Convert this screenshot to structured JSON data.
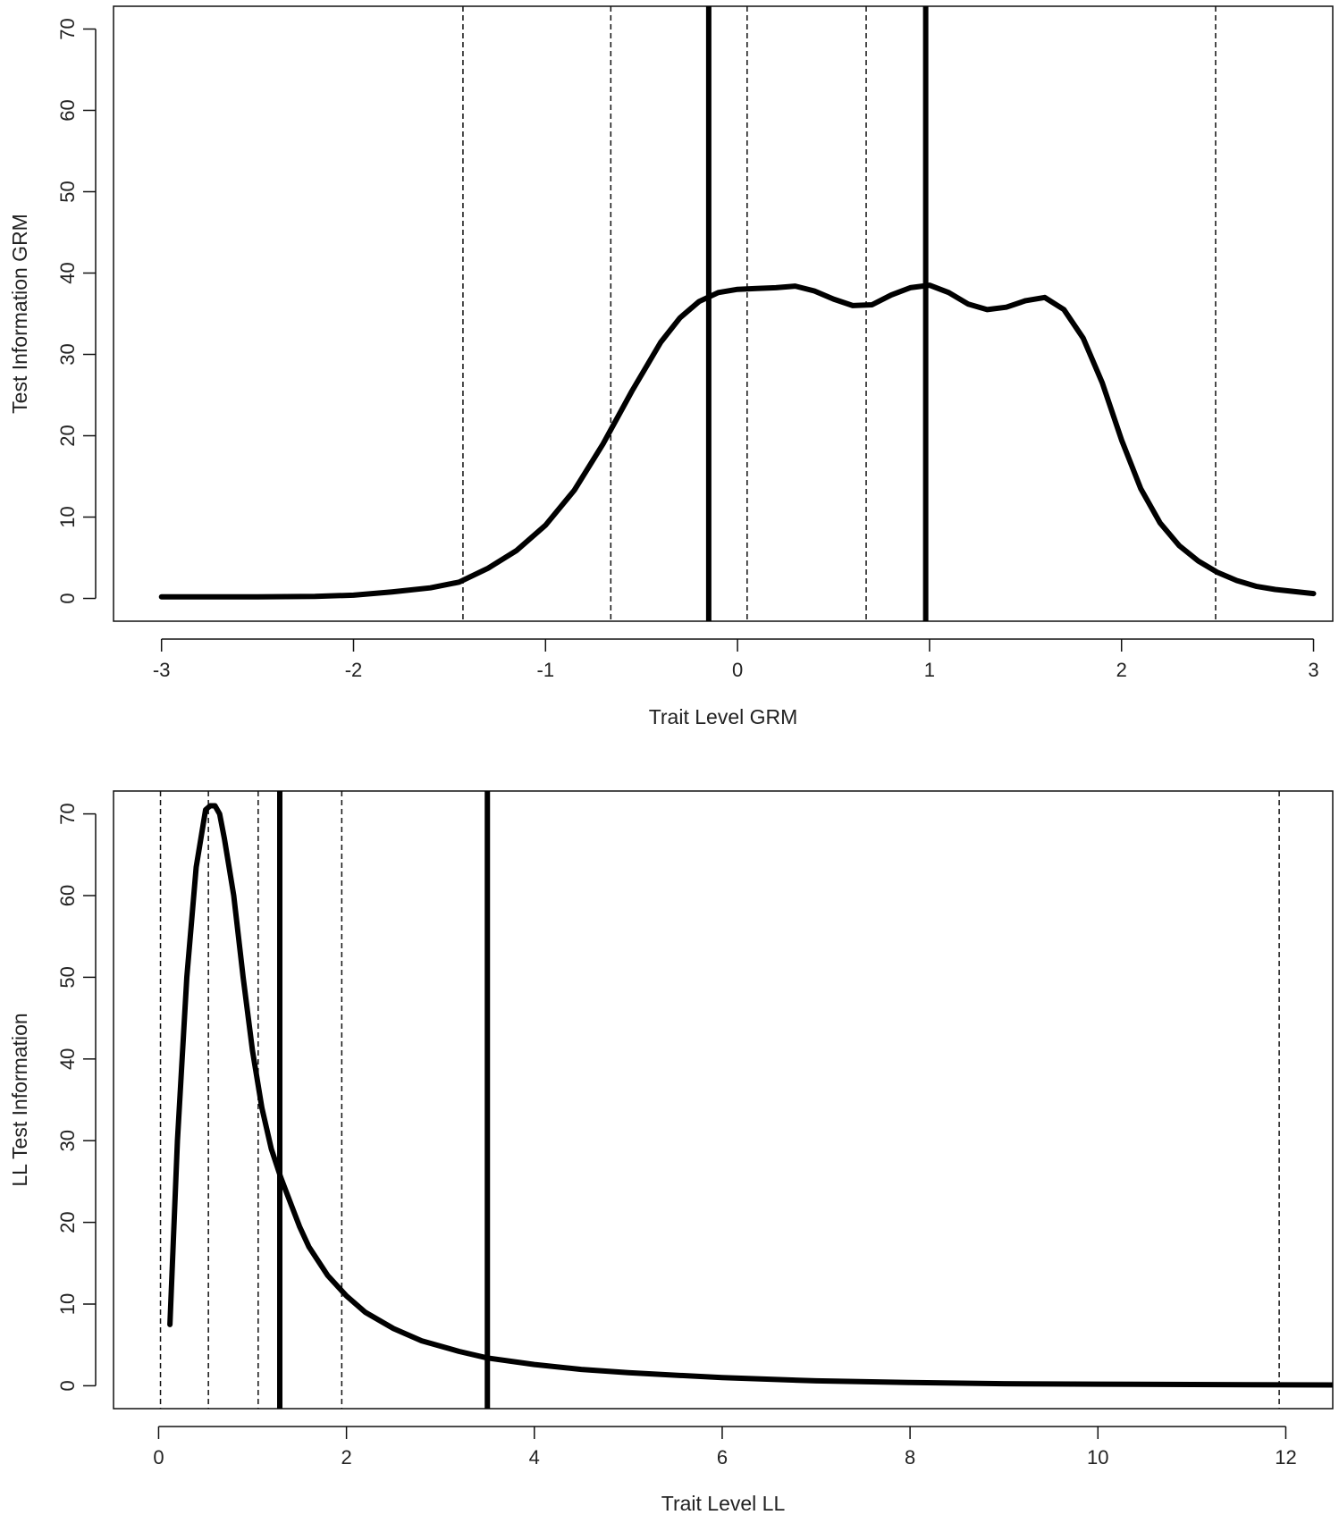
{
  "chart_data": [
    {
      "type": "line",
      "title": "",
      "xlabel": "Trait Level GRM",
      "ylabel": "Test Information GRM",
      "xlim": [
        -3.25,
        3.1
      ],
      "ylim": [
        -2.8,
        72.8
      ],
      "xticks": [
        -3,
        -2,
        -1,
        0,
        1,
        2,
        3
      ],
      "xtick_labels": [
        "-3",
        "-2",
        "-1",
        "0",
        "1",
        "2",
        "3"
      ],
      "yticks": [
        0,
        10,
        20,
        30,
        40,
        50,
        60,
        70
      ],
      "ytick_labels": [
        "0",
        "10",
        "20",
        "30",
        "40",
        "50",
        "60",
        "70"
      ],
      "grid": false,
      "solid_vlines": [
        -0.15,
        0.98
      ],
      "dashed_vlines": [
        -1.43,
        -0.66,
        0.05,
        0.67,
        2.49
      ],
      "series": [
        {
          "x": [
            -3,
            -2.5,
            -2.2,
            -2.0,
            -1.8,
            -1.6,
            -1.45,
            -1.3,
            -1.15,
            -1.0,
            -0.85,
            -0.7,
            -0.55,
            -0.4,
            -0.3,
            -0.2,
            -0.1,
            0,
            0.1,
            0.2,
            0.3,
            0.4,
            0.5,
            0.6,
            0.7,
            0.8,
            0.9,
            1.0,
            1.1,
            1.2,
            1.3,
            1.4,
            1.5,
            1.6,
            1.7,
            1.8,
            1.9,
            2.0,
            2.1,
            2.2,
            2.3,
            2.4,
            2.5,
            2.6,
            2.7,
            2.8,
            3.0
          ],
          "y": [
            0.2,
            0.2,
            0.25,
            0.4,
            0.8,
            1.3,
            2.0,
            3.7,
            5.9,
            9.0,
            13.3,
            19.0,
            25.5,
            31.5,
            34.5,
            36.5,
            37.6,
            38.0,
            38.1,
            38.2,
            38.4,
            37.8,
            36.8,
            36.0,
            36.1,
            37.3,
            38.2,
            38.5,
            37.6,
            36.2,
            35.5,
            35.8,
            36.6,
            37.0,
            35.5,
            32.0,
            26.5,
            19.5,
            13.5,
            9.3,
            6.5,
            4.6,
            3.2,
            2.2,
            1.5,
            1.1,
            0.6
          ]
        }
      ]
    },
    {
      "type": "line",
      "title": "",
      "xlabel": "Trait Level LL",
      "ylabel": "LL Test Information",
      "xlim": [
        -0.48,
        12.5
      ],
      "ylim": [
        -2.8,
        72.8
      ],
      "xticks": [
        0,
        2,
        4,
        6,
        8,
        10,
        12
      ],
      "xtick_labels": [
        "0",
        "2",
        "4",
        "6",
        "8",
        "10",
        "12"
      ],
      "yticks": [
        0,
        10,
        20,
        30,
        40,
        50,
        60,
        70
      ],
      "ytick_labels": [
        "0",
        "10",
        "20",
        "30",
        "40",
        "50",
        "60",
        "70"
      ],
      "grid": false,
      "solid_vlines": [
        1.29,
        3.5
      ],
      "dashed_vlines": [
        0.02,
        0.53,
        1.06,
        1.95,
        11.93
      ],
      "series": [
        {
          "x": [
            0.12,
            0.2,
            0.3,
            0.4,
            0.5,
            0.55,
            0.6,
            0.65,
            0.7,
            0.8,
            0.9,
            1.0,
            1.1,
            1.2,
            1.3,
            1.4,
            1.5,
            1.6,
            1.8,
            2.0,
            2.2,
            2.5,
            2.8,
            3.2,
            3.5,
            4.0,
            4.5,
            5.0,
            6.0,
            7.0,
            8.0,
            9.0,
            10.0,
            11.0,
            12.5
          ],
          "y": [
            7.5,
            30.0,
            50.0,
            63.5,
            70.5,
            71.0,
            71.0,
            70.0,
            67.0,
            60.0,
            50.0,
            41.0,
            34.0,
            29.0,
            25.5,
            22.5,
            19.5,
            17.0,
            13.5,
            11.0,
            9.0,
            7.0,
            5.5,
            4.2,
            3.4,
            2.6,
            2.0,
            1.6,
            1.0,
            0.6,
            0.4,
            0.25,
            0.2,
            0.15,
            0.1
          ]
        }
      ]
    }
  ]
}
